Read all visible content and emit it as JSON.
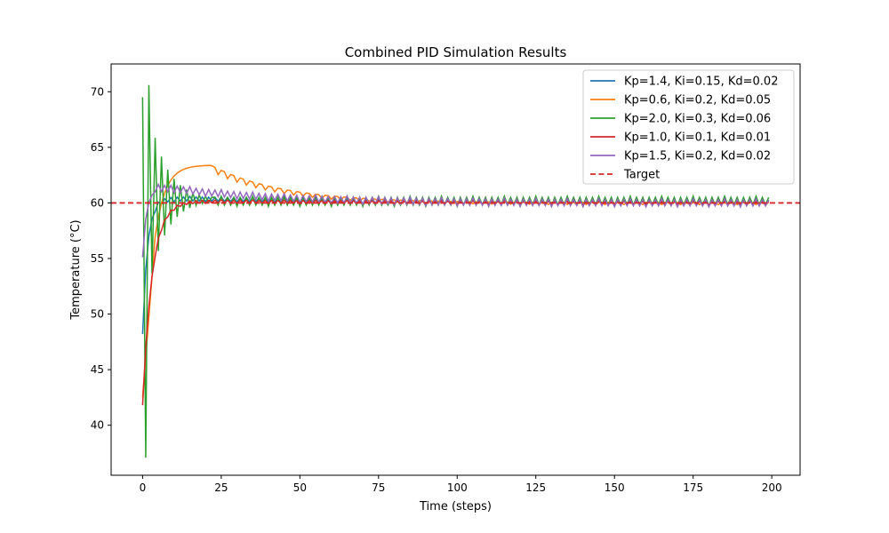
{
  "chart_data": {
    "type": "line",
    "title": "Combined PID Simulation Results",
    "xlabel": "Time (steps)",
    "ylabel": "Temperature (°C)",
    "xlim": [
      -10,
      209
    ],
    "ylim": [
      35.5,
      72.5
    ],
    "xticks": [
      0,
      25,
      50,
      75,
      100,
      125,
      150,
      175,
      200
    ],
    "yticks": [
      40,
      45,
      50,
      55,
      60,
      65,
      70
    ],
    "grid": false,
    "legend_position": "top-right",
    "target": {
      "name": "Target",
      "value": 60,
      "color": "#d62728",
      "style": "dashed"
    },
    "series": [
      {
        "name": "Kp=1.4, Ki=0.15, Kd=0.02",
        "color": "#1f77b4",
        "start": 48.2,
        "pattern": "step_response",
        "tau": 1.5,
        "overshoot": 0.5,
        "ripple": 0.3
      },
      {
        "name": "Kp=0.6, Ki=0.2, Kd=0.05",
        "color": "#ff7f0e",
        "start": 42.5,
        "pattern": "slow_overshoot",
        "peak": 63.4,
        "peak_step": 21,
        "ripple": 0.5
      },
      {
        "name": "Kp=2.0, Ki=0.3, Kd=0.06",
        "color": "#2ca02c",
        "start": 69.5,
        "pattern": "oscillating",
        "min": 37.1,
        "max": 70.6,
        "ripple": 0.35
      },
      {
        "name": "Kp=1.0, Ki=0.1, Kd=0.01",
        "color": "#d62728",
        "start": 41.8,
        "pattern": "step_response",
        "tau": 3,
        "overshoot": 0.2,
        "ripple": 0.2
      },
      {
        "name": "Kp=1.5, Ki=0.2, Kd=0.02",
        "color": "#9467bd",
        "start": 55.1,
        "pattern": "plateau",
        "plateau": 61.2,
        "ripple": 0.35
      }
    ]
  }
}
